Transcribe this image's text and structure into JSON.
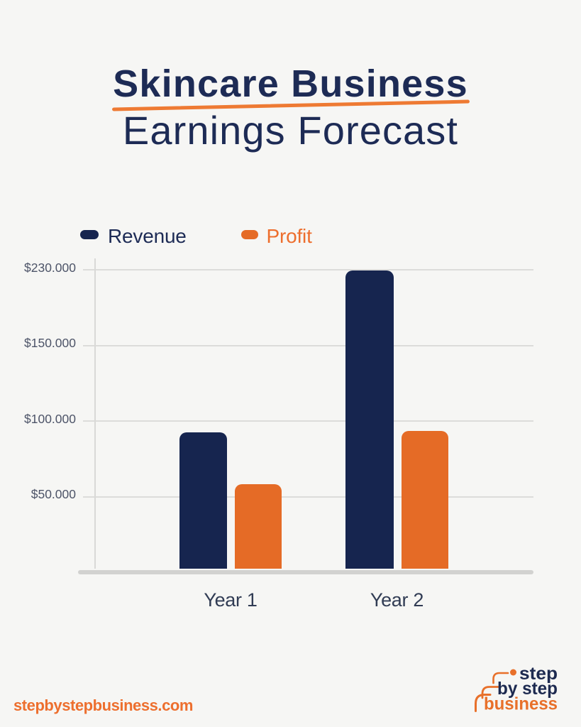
{
  "header": {
    "title_line1": "Skincare Business",
    "title_line2": "Earnings Forecast"
  },
  "chart_data": {
    "type": "bar",
    "title": "Skincare Business Earnings Forecast",
    "categories": [
      "Year 1",
      "Year 2"
    ],
    "series": [
      {
        "name": "Revenue",
        "color": "#16254F",
        "values": [
          92500,
          229000
        ]
      },
      {
        "name": "Profit",
        "color": "#E56B26",
        "values": [
          58000,
          93500
        ]
      }
    ],
    "y_ticks": [
      {
        "label": "$230.000",
        "value": 230000
      },
      {
        "label": "$150.000",
        "value": 150000
      },
      {
        "label": "$100.000",
        "value": 100000
      },
      {
        "label": "$50.000",
        "value": 50000
      }
    ],
    "ylim": [
      0,
      230000
    ],
    "grid": true,
    "legend_position": "top-left",
    "bar_corner": "rounded-top"
  },
  "footer": {
    "website": "stepbystepbusiness.com"
  },
  "logo": {
    "line1": "step",
    "line2": "by step",
    "line3": "business"
  },
  "colors": {
    "navy": "#16254F",
    "orange": "#E56B26",
    "title_navy": "#1D2B55",
    "underline_orange": "#EE7A33",
    "background": "#F6F6F4",
    "gridline": "#DCDCDA",
    "axis_label": "#4D5468"
  }
}
